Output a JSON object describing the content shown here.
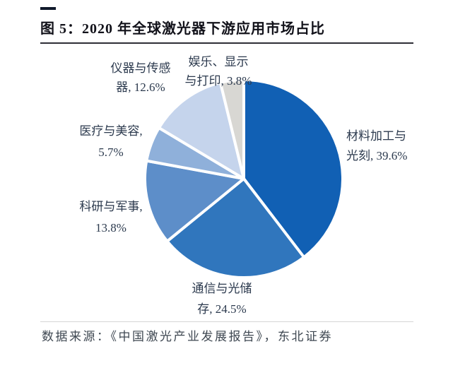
{
  "figure": {
    "title": "图 5：2020 年全球激光器下游应用市场占比",
    "source": "数据来源：《中国激光产业发展报告》，东北证券"
  },
  "chart_data": {
    "type": "pie",
    "title": "2020 年全球激光器下游应用市场占比",
    "start_angle_deg": -90,
    "direction": "clockwise",
    "legend": "none (direct labels with percentages)",
    "gap_color": "#ffffff",
    "slices": [
      {
        "label": "材料加工与光刻",
        "value": 39.6,
        "color": "#1160b4",
        "label_lines": [
          "材料加工与",
          "光刻, 39.6%"
        ]
      },
      {
        "label": "通信与光储存",
        "value": 24.5,
        "color": "#3076bd",
        "label_lines": [
          "通信与光储",
          "存, 24.5%"
        ]
      },
      {
        "label": "科研与军事",
        "value": 13.8,
        "color": "#5d8ec9",
        "label_lines": [
          "科研与军事,",
          "13.8%"
        ]
      },
      {
        "label": "医疗与美容",
        "value": 5.7,
        "color": "#8fb0da",
        "label_lines": [
          "医疗与美容,",
          "5.7%"
        ]
      },
      {
        "label": "仪器与传感器",
        "value": 12.6,
        "color": "#c5d4ec",
        "label_lines": [
          "仪器与传感",
          "器, 12.6%"
        ]
      },
      {
        "label": "娱乐、显示与打印",
        "value": 3.8,
        "color": "#d8d7d3",
        "label_lines": [
          "娱乐、显示",
          "与打印, 3.8%"
        ]
      }
    ]
  }
}
